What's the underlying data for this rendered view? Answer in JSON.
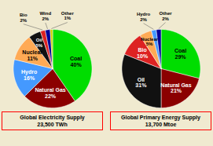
{
  "chart_data": [
    {
      "type": "pie",
      "title": "Global Electricity Supply",
      "subtitle": "23,500 TWh",
      "categories": [
        "Coal",
        "Natural Gas",
        "Hydro",
        "Nuclear",
        "Oil",
        "Bio",
        "Wind",
        "Other"
      ],
      "values": [
        40,
        22,
        16,
        11,
        5,
        2,
        2,
        1
      ],
      "value_labels": [
        "40%",
        "22%",
        "16%",
        "11%",
        "5%",
        "2%",
        "2%",
        "1%"
      ],
      "colors": [
        "#00dd00",
        "#8b0000",
        "#4499ff",
        "#ffaa55",
        "#111111",
        "#dd2222",
        "#000099",
        "#cccc00"
      ],
      "data_labels": true
    },
    {
      "type": "pie",
      "title": "Global Primary Energy Supply",
      "subtitle": "13,700 Mtoe",
      "categories": [
        "Coal",
        "Natural Gas",
        "Oil",
        "Bio",
        "Nuclear",
        "Hydro",
        "Other"
      ],
      "values": [
        29,
        21,
        31,
        10,
        5,
        2,
        2
      ],
      "value_labels": [
        "29%",
        "21%",
        "31%",
        "10%",
        "5%",
        "2%",
        "2%"
      ],
      "colors": [
        "#00dd00",
        "#8b0000",
        "#111111",
        "#dd2222",
        "#ffaa55",
        "#4499ff",
        "#000099"
      ],
      "data_labels": true
    }
  ]
}
